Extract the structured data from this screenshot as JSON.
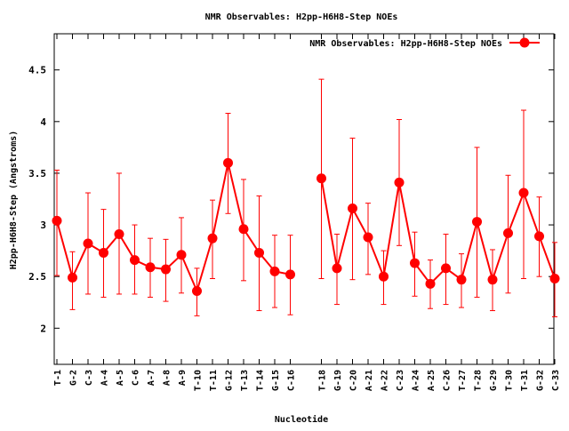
{
  "chart_data": {
    "type": "line",
    "title": "NMR Observables: H2pp-H6H8-Step NOEs",
    "xlabel": "Nucleotide",
    "ylabel": "H2pp-H6H8-Step (Angstroms)",
    "ylim": [
      1.65,
      4.85
    ],
    "yticks": [
      "2",
      "2.5",
      "3",
      "3.5",
      "4",
      "4.5"
    ],
    "grid": false,
    "legend_position": "top-right",
    "legend_label": "NMR Observables: H2pp-H6H8-Step NOEs",
    "series_color": "#ff0000",
    "categories": [
      "T-1",
      "G-2",
      "C-3",
      "A-4",
      "A-5",
      "C-6",
      "A-7",
      "A-8",
      "A-9",
      "T-10",
      "T-11",
      "G-12",
      "T-13",
      "T-14",
      "G-15",
      "C-16",
      "",
      "T-18",
      "G-19",
      "C-20",
      "A-21",
      "A-22",
      "C-23",
      "A-24",
      "A-25",
      "C-26",
      "T-27",
      "T-28",
      "G-29",
      "T-30",
      "T-31",
      "G-32",
      "C-33"
    ],
    "series": [
      {
        "name": "NMR Observables: H2pp-H6H8-Step NOEs",
        "values": [
          3.04,
          2.49,
          2.82,
          2.73,
          2.91,
          2.66,
          2.59,
          2.57,
          2.71,
          2.36,
          2.87,
          3.6,
          2.96,
          2.73,
          2.55,
          2.52,
          null,
          3.45,
          2.58,
          3.16,
          2.88,
          2.5,
          3.41,
          2.63,
          2.43,
          2.58,
          2.47,
          3.03,
          2.47,
          2.92,
          3.31,
          2.89,
          2.48
        ],
        "err_low": [
          2.51,
          2.18,
          2.33,
          2.3,
          2.33,
          2.33,
          2.3,
          2.26,
          2.34,
          2.12,
          2.48,
          3.11,
          2.46,
          2.17,
          2.2,
          2.13,
          null,
          2.48,
          2.23,
          2.47,
          2.52,
          2.23,
          2.8,
          2.31,
          2.19,
          2.23,
          2.2,
          2.3,
          2.17,
          2.34,
          2.48,
          2.5,
          2.11
        ],
        "err_high": [
          3.53,
          2.74,
          3.31,
          3.15,
          3.5,
          3.0,
          2.87,
          2.86,
          3.07,
          2.58,
          3.24,
          4.08,
          3.44,
          3.28,
          2.9,
          2.9,
          null,
          4.41,
          2.91,
          3.84,
          3.21,
          2.75,
          4.02,
          2.93,
          2.66,
          2.91,
          2.72,
          3.75,
          2.76,
          3.48,
          4.11,
          3.27,
          2.83
        ]
      }
    ]
  }
}
